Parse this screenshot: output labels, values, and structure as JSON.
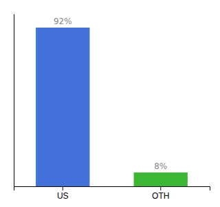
{
  "chart_data": {
    "type": "bar",
    "categories": [
      "US",
      "OTH"
    ],
    "values": [
      92,
      8
    ],
    "colors": [
      "#4472db",
      "#3cb832"
    ],
    "data_labels": true,
    "value_labels": [
      "92%",
      "8%"
    ],
    "ylim": [
      0,
      100
    ],
    "tick_labels": "x"
  }
}
